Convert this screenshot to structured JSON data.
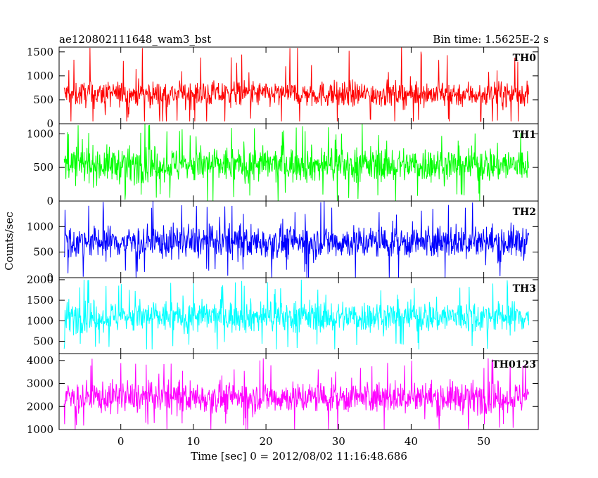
{
  "header": {
    "title": "ae120802111648_wam3_bst",
    "bin_time": "Bin time: 1.5625E-2 s"
  },
  "chart_data": {
    "type": "line",
    "title": "ae120802111648_wam3_bst",
    "subtitle": "Bin time: 1.5625E-2 s",
    "xlabel": "Time [sec] 0 = 2012/08/02 11:16:48.686",
    "ylabel": "Counts/sec",
    "xlim": [
      -8.5,
      57.5
    ],
    "data_x_range": [
      -7.8,
      56.2
    ],
    "x_ticks": [
      0,
      10,
      20,
      30,
      40,
      50
    ],
    "x_tick_labels": [
      "0",
      "10",
      "20",
      "30",
      "40",
      "50"
    ],
    "panels": [
      {
        "name": "TH0",
        "color": "#ff0000",
        "ylim": [
          0,
          1600
        ],
        "y_ticks": [
          0,
          500,
          1000,
          1500
        ],
        "y_tick_labels": [
          "0",
          "500",
          "1000",
          "1500"
        ],
        "mean": 620,
        "band": [
          200,
          1050
        ],
        "min": 50,
        "max": 1600
      },
      {
        "name": "TH1",
        "color": "#00ff00",
        "ylim": [
          0,
          1150
        ],
        "y_ticks": [
          0,
          500,
          1000
        ],
        "y_tick_labels": [
          "0",
          "500",
          "1000"
        ],
        "mean": 540,
        "band": [
          120,
          960
        ],
        "min": 0,
        "max": 1150
      },
      {
        "name": "TH2",
        "color": "#0000ff",
        "ylim": [
          0,
          1500
        ],
        "y_ticks": [
          0,
          500,
          1000
        ],
        "y_tick_labels": [
          "0",
          "500",
          "1000"
        ],
        "mean": 700,
        "band": [
          150,
          1200
        ],
        "min": 0,
        "max": 1500
      },
      {
        "name": "TH3",
        "color": "#00ffff",
        "ylim": [
          200,
          2050
        ],
        "y_ticks": [
          500,
          1000,
          1500,
          2000
        ],
        "y_tick_labels": [
          "500",
          "1000",
          "1500",
          "2000"
        ],
        "mean": 1100,
        "band": [
          450,
          1700
        ],
        "min": 300,
        "max": 2000
      },
      {
        "name": "TH0123",
        "color": "#ff00ff",
        "ylim": [
          1000,
          4300
        ],
        "y_ticks": [
          1000,
          2000,
          3000,
          4000
        ],
        "y_tick_labels": [
          "1000",
          "2000",
          "3000",
          "4000"
        ],
        "mean": 2400,
        "band": [
          1400,
          3600
        ],
        "min": 1000,
        "max": 4200
      }
    ],
    "grid": false,
    "legend": "none"
  }
}
